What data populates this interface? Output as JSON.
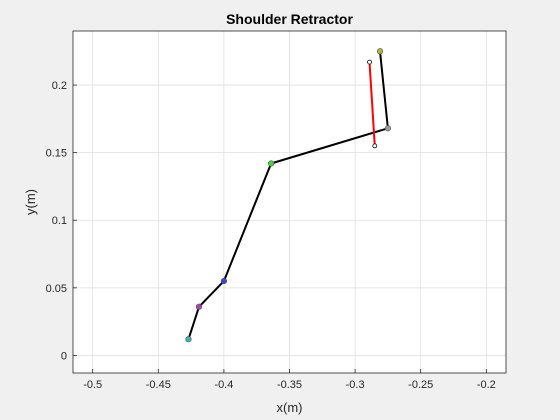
{
  "chart_data": {
    "type": "line",
    "title": "Shoulder Retractor",
    "xlabel": "x(m)",
    "ylabel": "y(m)",
    "xlim": [
      -0.515,
      -0.185
    ],
    "ylim": [
      -0.013,
      0.24
    ],
    "xticks": [
      -0.5,
      -0.45,
      -0.4,
      -0.35,
      -0.3,
      -0.25,
      -0.2
    ],
    "xtick_labels": [
      "-0.5",
      "-0.45",
      "-0.4",
      "-0.35",
      "-0.3",
      "-0.25",
      "-0.2"
    ],
    "yticks": [
      0,
      0.05,
      0.1,
      0.15,
      0.2
    ],
    "ytick_labels": [
      "0",
      "0.05",
      "0.1",
      "0.15",
      "0.2"
    ],
    "grid": true,
    "series": [
      {
        "color": "#000000",
        "x": [
          -0.427,
          -0.419,
          -0.4,
          -0.364,
          -0.275,
          -0.281
        ],
        "y": [
          0.012,
          0.036,
          0.055,
          0.142,
          0.168,
          0.225
        ]
      },
      {
        "color": "#ff0000",
        "x": [
          -0.289,
          -0.285
        ],
        "y": [
          0.217,
          0.155
        ]
      }
    ],
    "joints": [
      {
        "x": -0.427,
        "y": 0.012,
        "color": "#3fb2b2"
      },
      {
        "x": -0.419,
        "y": 0.036,
        "color": "#b23fb2"
      },
      {
        "x": -0.4,
        "y": 0.055,
        "color": "#3f3fd9"
      },
      {
        "x": -0.364,
        "y": 0.142,
        "color": "#3fd93f"
      },
      {
        "x": -0.275,
        "y": 0.168,
        "color": "#999999"
      },
      {
        "x": -0.281,
        "y": 0.225,
        "color": "#b2b23f"
      }
    ],
    "markers": [
      {
        "x": -0.289,
        "y": 0.217
      },
      {
        "x": -0.285,
        "y": 0.155
      }
    ]
  }
}
